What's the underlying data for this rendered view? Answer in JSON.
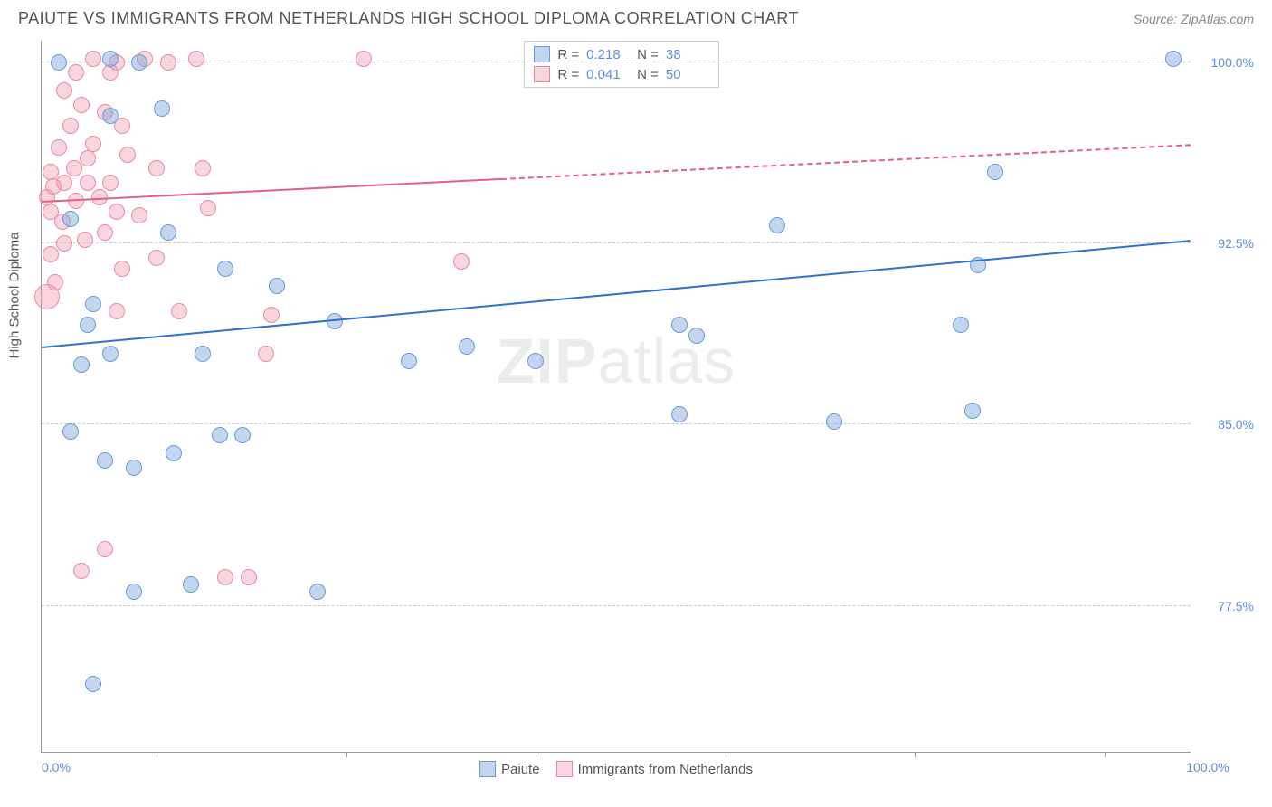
{
  "header": {
    "title": "PAIUTE VS IMMIGRANTS FROM NETHERLANDS HIGH SCHOOL DIPLOMA CORRELATION CHART",
    "source": "Source: ZipAtlas.com"
  },
  "axes": {
    "y_label": "High School Diploma",
    "x_min_label": "0.0%",
    "x_max_label": "100.0%",
    "y_ticks": [
      {
        "pct": 100.0,
        "label": "100.0%",
        "pos": 0.97
      },
      {
        "pct": 92.5,
        "label": "92.5%",
        "pos": 0.715
      },
      {
        "pct": 85.0,
        "label": "85.0%",
        "pos": 0.46
      },
      {
        "pct": 77.5,
        "label": "77.5%",
        "pos": 0.205
      }
    ],
    "x_tick_positions": [
      0.1,
      0.265,
      0.43,
      0.595,
      0.76,
      0.925
    ]
  },
  "series": {
    "blue": {
      "name": "Paiute",
      "fill": "rgba(120,165,220,0.45)",
      "stroke": "#6a9bd8",
      "trend_color": "#2e72c9",
      "R": "0.218",
      "N": "38",
      "trend": {
        "x1": 0.0,
        "y1": 0.57,
        "x2": 1.0,
        "y2": 0.72,
        "dashed_from": null
      },
      "points": [
        {
          "x": 0.015,
          "y": 0.97
        },
        {
          "x": 0.06,
          "y": 0.975
        },
        {
          "x": 0.085,
          "y": 0.97
        },
        {
          "x": 0.985,
          "y": 0.975
        },
        {
          "x": 0.025,
          "y": 0.75
        },
        {
          "x": 0.04,
          "y": 0.6
        },
        {
          "x": 0.06,
          "y": 0.56
        },
        {
          "x": 0.025,
          "y": 0.45
        },
        {
          "x": 0.055,
          "y": 0.41
        },
        {
          "x": 0.08,
          "y": 0.4
        },
        {
          "x": 0.115,
          "y": 0.42
        },
        {
          "x": 0.045,
          "y": 0.095
        },
        {
          "x": 0.11,
          "y": 0.73
        },
        {
          "x": 0.16,
          "y": 0.68
        },
        {
          "x": 0.08,
          "y": 0.225
        },
        {
          "x": 0.13,
          "y": 0.235
        },
        {
          "x": 0.205,
          "y": 0.655
        },
        {
          "x": 0.175,
          "y": 0.445
        },
        {
          "x": 0.14,
          "y": 0.56
        },
        {
          "x": 0.24,
          "y": 0.225
        },
        {
          "x": 0.255,
          "y": 0.605
        },
        {
          "x": 0.32,
          "y": 0.55
        },
        {
          "x": 0.37,
          "y": 0.57
        },
        {
          "x": 0.43,
          "y": 0.55
        },
        {
          "x": 0.555,
          "y": 0.6
        },
        {
          "x": 0.555,
          "y": 0.475
        },
        {
          "x": 0.57,
          "y": 0.585
        },
        {
          "x": 0.64,
          "y": 0.74
        },
        {
          "x": 0.69,
          "y": 0.465
        },
        {
          "x": 0.8,
          "y": 0.6
        },
        {
          "x": 0.81,
          "y": 0.48
        },
        {
          "x": 0.815,
          "y": 0.685
        },
        {
          "x": 0.83,
          "y": 0.815
        },
        {
          "x": 0.045,
          "y": 0.63
        },
        {
          "x": 0.035,
          "y": 0.545
        },
        {
          "x": 0.105,
          "y": 0.905
        },
        {
          "x": 0.06,
          "y": 0.895
        },
        {
          "x": 0.155,
          "y": 0.445
        }
      ]
    },
    "pink": {
      "name": "Immigrants from Netherlands",
      "fill": "rgba(240,150,170,0.40)",
      "stroke": "#e88aa2",
      "trend_color": "#e35f85",
      "R": "0.041",
      "N": "50",
      "trend": {
        "x1": 0.0,
        "y1": 0.775,
        "x2": 1.0,
        "y2": 0.855,
        "dashed_from": 0.4
      },
      "points": [
        {
          "x": 0.005,
          "y": 0.78
        },
        {
          "x": 0.01,
          "y": 0.795
        },
        {
          "x": 0.02,
          "y": 0.8
        },
        {
          "x": 0.008,
          "y": 0.76
        },
        {
          "x": 0.018,
          "y": 0.745
        },
        {
          "x": 0.03,
          "y": 0.775
        },
        {
          "x": 0.028,
          "y": 0.82
        },
        {
          "x": 0.04,
          "y": 0.835
        },
        {
          "x": 0.012,
          "y": 0.66
        },
        {
          "x": 0.015,
          "y": 0.85
        },
        {
          "x": 0.025,
          "y": 0.88
        },
        {
          "x": 0.035,
          "y": 0.91
        },
        {
          "x": 0.045,
          "y": 0.855
        },
        {
          "x": 0.055,
          "y": 0.9
        },
        {
          "x": 0.06,
          "y": 0.8
        },
        {
          "x": 0.05,
          "y": 0.78
        },
        {
          "x": 0.038,
          "y": 0.72
        },
        {
          "x": 0.005,
          "y": 0.64,
          "r": 14
        },
        {
          "x": 0.045,
          "y": 0.975
        },
        {
          "x": 0.065,
          "y": 0.97
        },
        {
          "x": 0.09,
          "y": 0.975
        },
        {
          "x": 0.11,
          "y": 0.97
        },
        {
          "x": 0.135,
          "y": 0.975
        },
        {
          "x": 0.28,
          "y": 0.975
        },
        {
          "x": 0.075,
          "y": 0.84
        },
        {
          "x": 0.1,
          "y": 0.82
        },
        {
          "x": 0.085,
          "y": 0.755
        },
        {
          "x": 0.02,
          "y": 0.93
        },
        {
          "x": 0.03,
          "y": 0.955
        },
        {
          "x": 0.07,
          "y": 0.68
        },
        {
          "x": 0.1,
          "y": 0.695
        },
        {
          "x": 0.065,
          "y": 0.62
        },
        {
          "x": 0.055,
          "y": 0.73
        },
        {
          "x": 0.12,
          "y": 0.62
        },
        {
          "x": 0.2,
          "y": 0.615
        },
        {
          "x": 0.195,
          "y": 0.56
        },
        {
          "x": 0.365,
          "y": 0.69
        },
        {
          "x": 0.035,
          "y": 0.255
        },
        {
          "x": 0.055,
          "y": 0.285
        },
        {
          "x": 0.16,
          "y": 0.245
        },
        {
          "x": 0.18,
          "y": 0.245
        },
        {
          "x": 0.07,
          "y": 0.88
        },
        {
          "x": 0.06,
          "y": 0.955
        },
        {
          "x": 0.008,
          "y": 0.7
        },
        {
          "x": 0.02,
          "y": 0.715
        },
        {
          "x": 0.14,
          "y": 0.82
        },
        {
          "x": 0.04,
          "y": 0.8
        },
        {
          "x": 0.145,
          "y": 0.765
        },
        {
          "x": 0.008,
          "y": 0.815
        },
        {
          "x": 0.065,
          "y": 0.76
        }
      ]
    }
  },
  "legend_labels": {
    "R": "R  =",
    "N": "N  ="
  },
  "watermark": {
    "bold": "ZIP",
    "rest": "atlas"
  },
  "styling": {
    "point_radius": 9,
    "point_border": 1,
    "background": "#ffffff",
    "grid_color": "#cccccc",
    "axis_color": "#999999",
    "value_text_color": "#5a8fd6",
    "title_color": "#555555"
  }
}
